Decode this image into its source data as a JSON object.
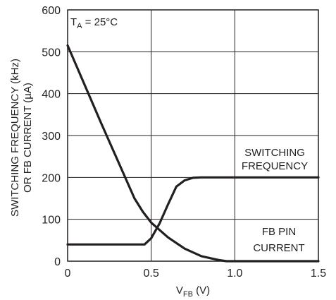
{
  "chart_data": {
    "type": "line",
    "xlabel": {
      "main": "V",
      "sub": "FB",
      "suffix": " (V)"
    },
    "ylabel": [
      "SWITCHING FREQUENCY (kHz)",
      "OR FB CURRENT (µA)"
    ],
    "xlim": [
      0,
      1.5
    ],
    "ylim": [
      0,
      600
    ],
    "xticks": [
      0,
      0.5,
      1.0,
      1.5
    ],
    "xtick_labels": [
      "0",
      "0.5",
      "1.0",
      "1.5"
    ],
    "yticks": [
      0,
      100,
      200,
      300,
      400,
      500,
      600
    ],
    "ytick_labels": [
      "0",
      "100",
      "200",
      "300",
      "400",
      "500",
      "600"
    ],
    "grid": true,
    "condition": {
      "main": "T",
      "sub": "A",
      "suffix": " = 25°C"
    },
    "series": [
      {
        "name": "SWITCHING FREQUENCY",
        "x": [
          0,
          0.46,
          0.5,
          0.55,
          0.6,
          0.65,
          0.7,
          0.75,
          0.8,
          1.0,
          1.5
        ],
        "y": [
          40,
          40,
          55,
          90,
          135,
          178,
          193,
          199,
          200,
          200,
          200
        ]
      },
      {
        "name": "FB PIN CURRENT",
        "x": [
          0,
          0.2,
          0.4,
          0.45,
          0.5,
          0.6,
          0.7,
          0.8,
          0.9,
          0.95,
          1.0,
          1.5
        ],
        "y": [
          515,
          330,
          150,
          118,
          92,
          57,
          30,
          12,
          3,
          0,
          0,
          0
        ]
      }
    ],
    "annotations": [
      {
        "lines": [
          "SWITCHING",
          "FREQUENCY"
        ],
        "for": "SWITCHING FREQUENCY"
      },
      {
        "lines": [
          "FB PIN",
          "CURRENT"
        ],
        "for": "FB PIN CURRENT"
      }
    ]
  }
}
